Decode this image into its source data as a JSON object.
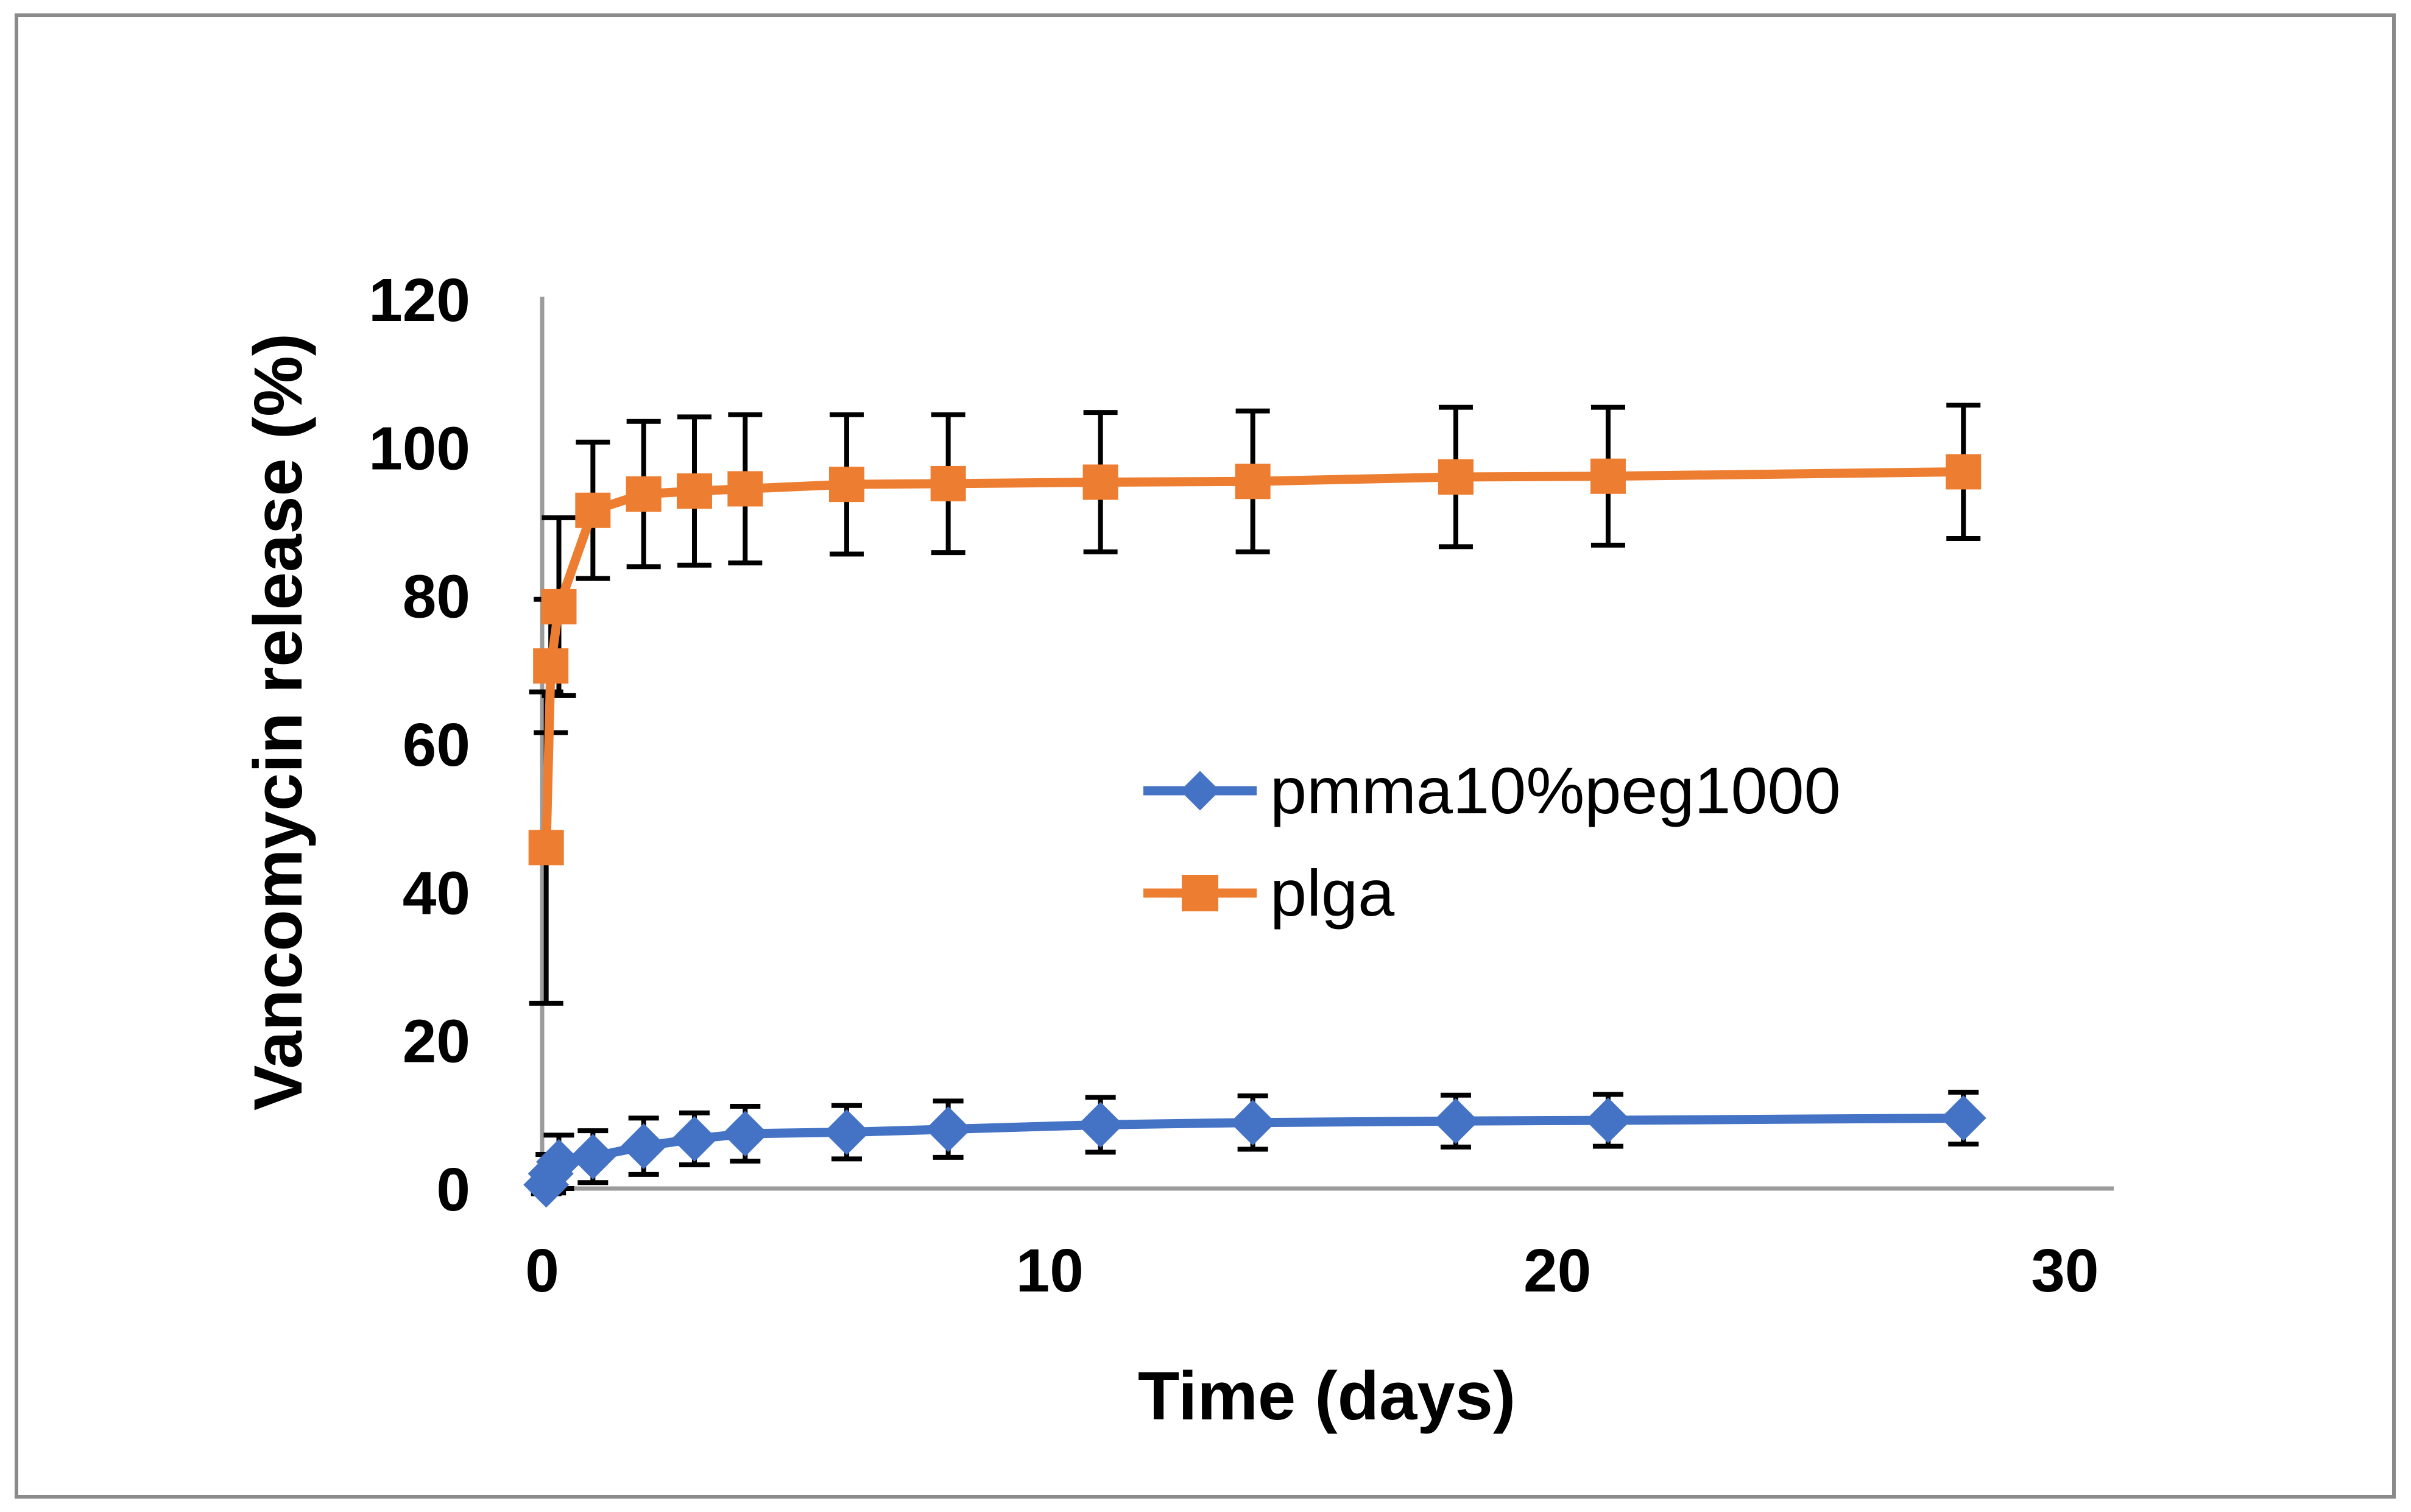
{
  "chart_data": {
    "type": "line",
    "title": "",
    "xlabel": "Time (days)",
    "ylabel": "Vancomycin release (%)",
    "xlim": [
      0,
      31
    ],
    "ylim": [
      0,
      120
    ],
    "x_ticks": [
      0,
      10,
      20,
      30
    ],
    "y_ticks": [
      0,
      20,
      40,
      60,
      80,
      100,
      120
    ],
    "grid": false,
    "legend_position": "inside-center-right",
    "axis_color": "#9B9B9B",
    "frame_color": "#8A8A8A",
    "error_bar_color": "#000000",
    "text_color": "#000000",
    "series": [
      {
        "name": "pmma10%peg1000",
        "color": "#4472C4",
        "marker": "diamond",
        "x": [
          0.08,
          0.17,
          0.33,
          1,
          2,
          3,
          4,
          6,
          8,
          11,
          14,
          18,
          21,
          28
        ],
        "y": [
          0.5,
          2.0,
          3.6,
          4.3,
          5.7,
          6.7,
          7.4,
          7.6,
          8.0,
          8.6,
          8.9,
          9.1,
          9.2,
          9.5
        ],
        "yerr": [
          1.2,
          2.6,
          3.6,
          3.5,
          3.8,
          3.5,
          3.7,
          3.6,
          3.8,
          3.7,
          3.6,
          3.5,
          3.5,
          3.5
        ]
      },
      {
        "name": "plga",
        "color": "#ED7D31",
        "marker": "square",
        "x": [
          0.08,
          0.17,
          0.33,
          1,
          2,
          3,
          4,
          6,
          8,
          11,
          14,
          18,
          21,
          28
        ],
        "y": [
          46,
          70.5,
          78.5,
          91.5,
          93.7,
          94.1,
          94.4,
          95.0,
          95.1,
          95.3,
          95.4,
          96.0,
          96.1,
          96.7
        ],
        "yerr": [
          21,
          9,
          12,
          9.2,
          9.8,
          10,
          10,
          9.4,
          9.3,
          9.4,
          9.5,
          9.4,
          9.3,
          9.0
        ]
      }
    ]
  }
}
